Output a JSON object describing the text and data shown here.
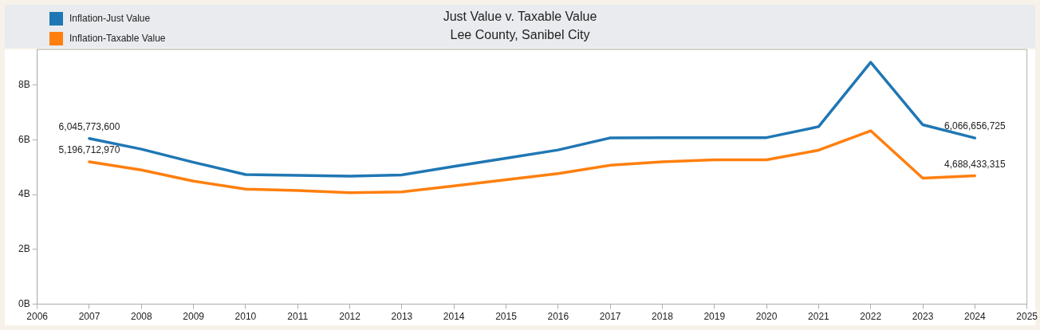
{
  "chart_data": {
    "type": "line",
    "title": "Just Value v. Taxable Value",
    "subtitle": "Lee County, Sanibel City",
    "x": [
      2007,
      2008,
      2009,
      2010,
      2011,
      2012,
      2013,
      2014,
      2015,
      2016,
      2017,
      2018,
      2019,
      2020,
      2021,
      2022,
      2023,
      2024
    ],
    "series": [
      {
        "name": "Inflation-Just Value",
        "color": "#1f77b4",
        "values": [
          6045773600,
          5660000000,
          5180000000,
          4730000000,
          4700000000,
          4670000000,
          4720000000,
          5030000000,
          5330000000,
          5630000000,
          6070000000,
          6080000000,
          6080000000,
          6080000000,
          6480000000,
          8830000000,
          6550000000,
          6066656725
        ],
        "value_labels": [
          "6,045,773,600",
          null,
          null,
          null,
          null,
          null,
          null,
          null,
          null,
          null,
          null,
          null,
          null,
          null,
          null,
          null,
          null,
          "6,066,656,725"
        ]
      },
      {
        "name": "Inflation-Taxable Value",
        "color": "#ff7f0e",
        "values": [
          5196712970,
          4900000000,
          4490000000,
          4200000000,
          4150000000,
          4070000000,
          4100000000,
          4320000000,
          4540000000,
          4770000000,
          5070000000,
          5200000000,
          5270000000,
          5270000000,
          5620000000,
          6330000000,
          4600000000,
          4688433315
        ],
        "value_labels": [
          "5,196,712,970",
          null,
          null,
          null,
          null,
          null,
          null,
          null,
          null,
          null,
          null,
          null,
          null,
          null,
          null,
          null,
          null,
          "4,688,433,315"
        ]
      }
    ],
    "xlim": [
      2006,
      2025
    ],
    "xticks": [
      2006,
      2007,
      2008,
      2009,
      2010,
      2011,
      2012,
      2013,
      2014,
      2015,
      2016,
      2017,
      2018,
      2019,
      2020,
      2021,
      2022,
      2023,
      2024,
      2025
    ],
    "ylim": [
      0,
      9300000000
    ],
    "yticks": [
      {
        "value": 0,
        "label": "0B"
      },
      {
        "value": 2000000000,
        "label": "2B"
      },
      {
        "value": 4000000000,
        "label": "4B"
      },
      {
        "value": 6000000000,
        "label": "6B"
      },
      {
        "value": 8000000000,
        "label": "8B"
      }
    ],
    "grid": false,
    "legend": "top left",
    "marker": "none",
    "line_style": "solid"
  }
}
